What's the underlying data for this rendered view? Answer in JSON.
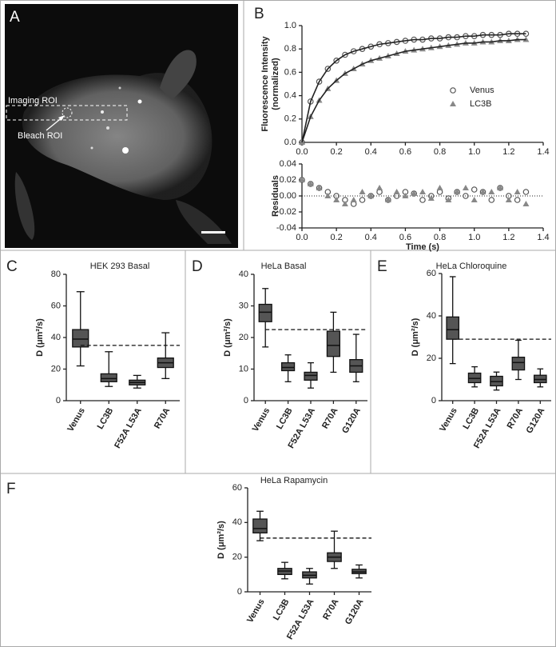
{
  "image_panel": {
    "panel": "A",
    "annotations": [
      "Imaging ROI",
      "Bleach ROI"
    ]
  },
  "chart_data": [
    {
      "type": "scatter-line",
      "panel": "B",
      "ylabel": [
        "Fluorescence Intensity",
        "(normalized)"
      ],
      "x": [
        0,
        0.05,
        0.1,
        0.15,
        0.2,
        0.25,
        0.3,
        0.35,
        0.4,
        0.45,
        0.5,
        0.55,
        0.6,
        0.65,
        0.7,
        0.75,
        0.8,
        0.85,
        0.9,
        0.95,
        1.0,
        1.05,
        1.1,
        1.15,
        1.2,
        1.25,
        1.3
      ],
      "series": [
        {
          "name": "Venus",
          "color": "#555555",
          "marker": "circle",
          "values": [
            0,
            0.35,
            0.52,
            0.63,
            0.7,
            0.75,
            0.78,
            0.8,
            0.82,
            0.84,
            0.85,
            0.86,
            0.87,
            0.88,
            0.88,
            0.89,
            0.89,
            0.9,
            0.9,
            0.91,
            0.91,
            0.92,
            0.92,
            0.92,
            0.93,
            0.93,
            0.93
          ]
        },
        {
          "name": "LC3B",
          "color": "#888888",
          "marker": "triangle",
          "values": [
            0,
            0.22,
            0.36,
            0.46,
            0.53,
            0.59,
            0.63,
            0.67,
            0.7,
            0.72,
            0.74,
            0.76,
            0.78,
            0.79,
            0.8,
            0.81,
            0.82,
            0.83,
            0.84,
            0.85,
            0.85,
            0.86,
            0.86,
            0.87,
            0.87,
            0.88,
            0.88
          ]
        }
      ],
      "xlim": [
        0,
        1.4
      ],
      "xticks": [
        {
          "value": 0,
          "label": "0.0"
        },
        0.2,
        0.4,
        0.6,
        0.8,
        {
          "value": 1,
          "label": "1.0"
        },
        1.2,
        1.4
      ],
      "ylim": [
        0,
        1
      ],
      "yticks": [
        {
          "value": 0,
          "label": "0.0"
        },
        0.2,
        0.4,
        0.6,
        0.8,
        {
          "value": 1,
          "label": "1.0"
        }
      ]
    },
    {
      "type": "scatter",
      "ylabel": "Residuals",
      "xlabel": "Time (s)",
      "zero_line": true,
      "x": [
        0,
        0.05,
        0.1,
        0.15,
        0.2,
        0.25,
        0.3,
        0.35,
        0.4,
        0.45,
        0.5,
        0.55,
        0.6,
        0.65,
        0.7,
        0.75,
        0.8,
        0.85,
        0.9,
        0.95,
        1.0,
        1.05,
        1.1,
        1.15,
        1.2,
        1.25,
        1.3
      ],
      "series": [
        {
          "color": "#555555",
          "marker": "circle",
          "values": [
            0.02,
            0.015,
            0.01,
            0.005,
            0,
            -0.005,
            -0.01,
            -0.005,
            0,
            0.005,
            -0.005,
            0,
            0.005,
            0.003,
            -0.005,
            0,
            0.005,
            -0.003,
            0.005,
            0,
            0.008,
            0.005,
            -0.005,
            0.01,
            0,
            -0.005,
            0.005
          ]
        },
        {
          "color": "#888888",
          "marker": "triangle",
          "values": [
            0.02,
            0.015,
            0.01,
            0,
            -0.005,
            -0.01,
            -0.005,
            0.005,
            0,
            0.01,
            -0.005,
            0.005,
            0,
            0.003,
            0.005,
            -0.003,
            0.01,
            -0.005,
            0.005,
            0.01,
            -0.005,
            0.005,
            0.005,
            0.01,
            -0.005,
            0.005,
            -0.01
          ]
        }
      ],
      "xlim": [
        0,
        1.4
      ],
      "xticks": [
        {
          "value": 0,
          "label": "0.0"
        },
        0.2,
        0.4,
        0.6,
        0.8,
        {
          "value": 1,
          "label": "1.0"
        },
        1.2,
        1.4
      ],
      "ylim": [
        -0.04,
        0.04
      ],
      "yticks": [
        -0.04,
        -0.02,
        {
          "value": 0,
          "label": "0.00"
        },
        0.02,
        0.04
      ]
    },
    {
      "type": "box",
      "panel": "C",
      "title": "HEK 293 Basal",
      "ylabel": "D (μm²/s)",
      "color": "#555555",
      "categories": [
        "Venus",
        "LC3B",
        "F52A L53A",
        "R70A"
      ],
      "min": [
        22,
        9,
        8,
        14
      ],
      "q1": [
        34,
        12,
        10,
        21
      ],
      "median": [
        39,
        14,
        11.5,
        24
      ],
      "q3": [
        45,
        17,
        13,
        27
      ],
      "max": [
        69,
        31,
        16,
        43
      ],
      "reference_line": 35,
      "ylim": [
        0,
        80
      ],
      "yticks": [
        0,
        20,
        40,
        60,
        80
      ]
    },
    {
      "type": "box",
      "panel": "D",
      "title": "HeLa Basal",
      "ylabel": "D (μm²/s)",
      "color": "#555555",
      "categories": [
        "Venus",
        "LC3B",
        "F52A L53A",
        "R70A",
        "G120A"
      ],
      "min": [
        17,
        6,
        4,
        9,
        6
      ],
      "q1": [
        25,
        9.5,
        6.5,
        14,
        9
      ],
      "median": [
        28,
        10.5,
        8,
        17.5,
        11
      ],
      "q3": [
        30.5,
        12,
        9,
        22,
        13
      ],
      "max": [
        35.5,
        14.5,
        12,
        28,
        21
      ],
      "reference_line": 22.5,
      "ylim": [
        0,
        40
      ],
      "yticks": [
        0,
        10,
        20,
        30,
        40
      ]
    },
    {
      "type": "box",
      "panel": "E",
      "title": "HeLa Chloroquine",
      "ylabel": "D (μm²/s)",
      "color": "#555555",
      "categories": [
        "Venus",
        "LC3B",
        "F52A L53A",
        "R70A",
        "G120A"
      ],
      "min": [
        17.5,
        6.5,
        5,
        10,
        6.5
      ],
      "q1": [
        29,
        8.5,
        7,
        14.5,
        8.5
      ],
      "median": [
        33.5,
        10.5,
        9,
        18,
        10
      ],
      "q3": [
        39.5,
        13,
        11.5,
        20.5,
        12
      ],
      "max": [
        58.5,
        16,
        13.5,
        28.5,
        15
      ],
      "reference_line": 29,
      "ylim": [
        0,
        60
      ],
      "yticks": [
        0,
        20,
        40,
        60
      ]
    },
    {
      "type": "box",
      "panel": "F",
      "title": "HeLa Rapamycin",
      "ylabel": "D (μm²/s)",
      "color": "#555555",
      "categories": [
        "Venus",
        "LC3B",
        "F52A L53A",
        "R70A",
        "G120A"
      ],
      "min": [
        29.5,
        7.5,
        4.5,
        13.5,
        8
      ],
      "q1": [
        34,
        10,
        8,
        17.5,
        10.5
      ],
      "median": [
        36.5,
        12,
        9.5,
        20,
        11.5
      ],
      "q3": [
        42,
        13.5,
        11.5,
        22.5,
        13
      ],
      "max": [
        46.5,
        17,
        13.5,
        35,
        15.5
      ],
      "reference_line": 31,
      "ylim": [
        0,
        60
      ],
      "yticks": [
        0,
        20,
        40,
        60
      ]
    }
  ]
}
